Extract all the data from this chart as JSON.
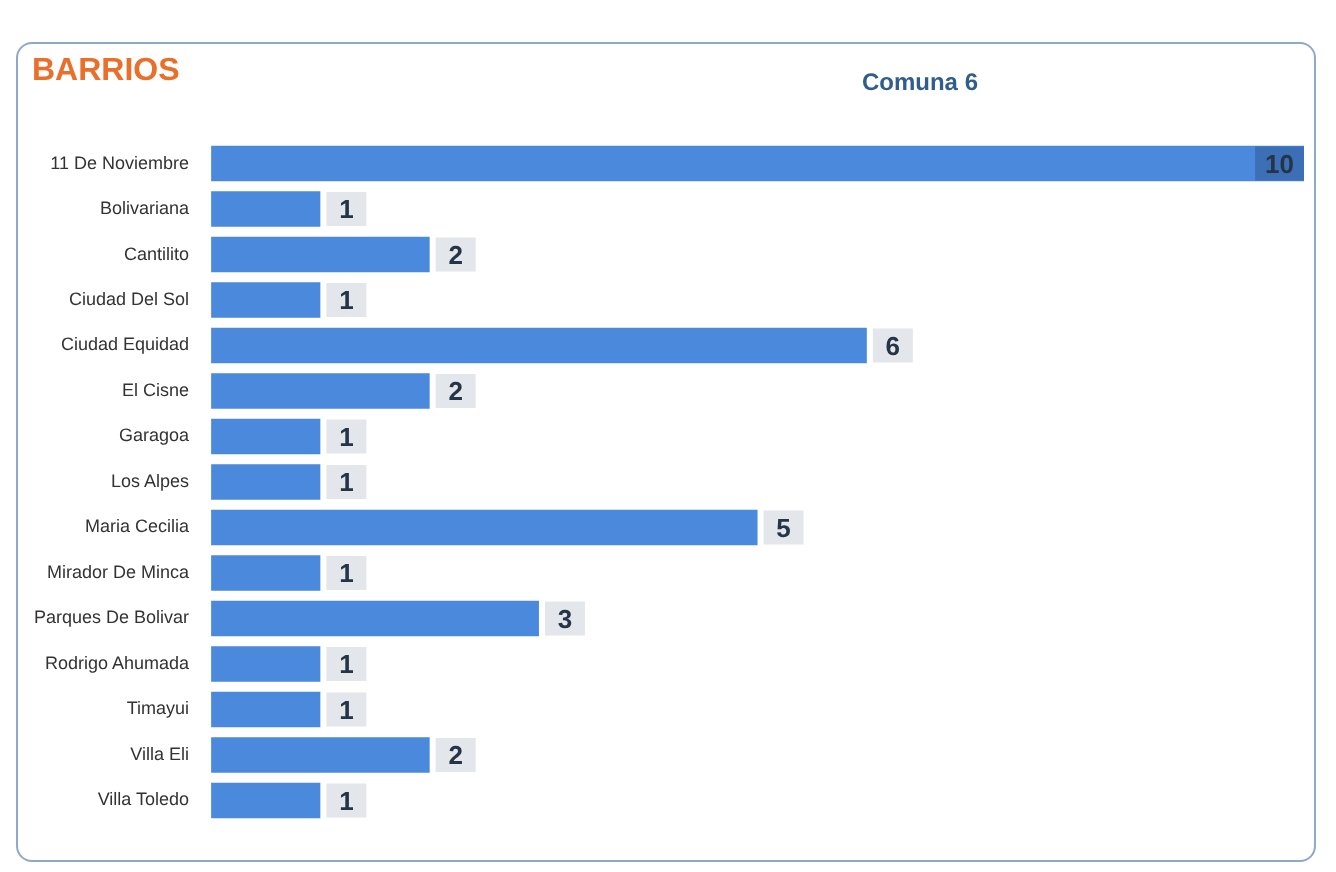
{
  "chart_data": {
    "type": "bar",
    "orientation": "horizontal",
    "title": "BARRIOS",
    "subtitle": "Comuna 6",
    "categories": [
      "11 De Noviembre",
      "Bolivariana",
      "Cantilito",
      "Ciudad Del Sol",
      "Ciudad Equidad",
      "El Cisne",
      "Garagoa",
      "Los Alpes",
      "Maria Cecilia",
      "Mirador De Minca",
      "Parques De Bolivar",
      "Rodrigo Ahumada",
      "Timayui",
      "Villa Eli",
      "Villa Toledo"
    ],
    "values": [
      10,
      1,
      2,
      1,
      6,
      2,
      1,
      1,
      5,
      1,
      3,
      1,
      1,
      2,
      1
    ],
    "color": "#4a89dc",
    "data_labels": true,
    "legend": false
  }
}
